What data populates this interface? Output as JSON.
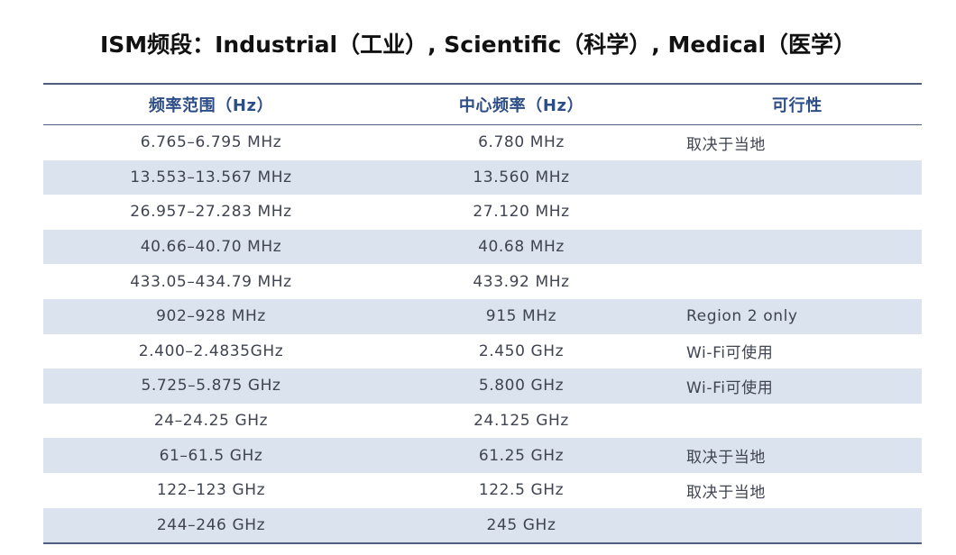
{
  "title": "ISM频段：Industrial（工业）, Scientific（科学）, Medical（医学）",
  "table": {
    "headers": [
      "频率范围（Hz）",
      "中心频率（Hz）",
      "可行性"
    ],
    "rows": [
      [
        "6.765–6.795 MHz",
        "6.780 MHz",
        "取决于当地"
      ],
      [
        "13.553–13.567 MHz",
        "13.560 MHz",
        ""
      ],
      [
        "26.957–27.283 MHz",
        "27.120 MHz",
        ""
      ],
      [
        "40.66–40.70 MHz",
        "40.68 MHz",
        ""
      ],
      [
        "433.05–434.79 MHz",
        "433.92 MHz",
        ""
      ],
      [
        "902–928 MHz",
        "915 MHz",
        "Region 2 only"
      ],
      [
        "2.400–2.4835GHz",
        "2.450 GHz",
        "Wi-Fi可使用"
      ],
      [
        "5.725–5.875 GHz",
        "5.800 GHz",
        "Wi-Fi可使用"
      ],
      [
        "24–24.25 GHz",
        "24.125 GHz",
        ""
      ],
      [
        "61–61.5 GHz",
        "61.25 GHz",
        "取决于当地"
      ],
      [
        "122–123 GHz",
        "122.5 GHz",
        "取决于当地"
      ],
      [
        "244–246 GHz",
        "245 GHz",
        ""
      ]
    ]
  },
  "colors": {
    "header_text": "#2d4d86",
    "stripe": "#dbe3ef",
    "rule": "#4f5e7d"
  }
}
